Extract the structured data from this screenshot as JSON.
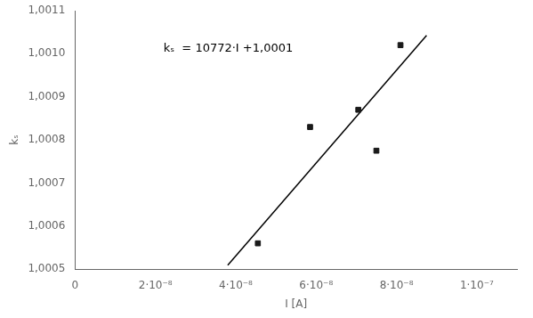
{
  "chart_data": {
    "type": "scatter",
    "xlabel": "I [A]",
    "ylabel": "kₛ",
    "annotation": "kₛ  = 10772·I +1,0001",
    "background_color": "#ffffff",
    "series": [
      {
        "type": "scatter",
        "marker": "square",
        "color": "#1a1a1a",
        "x": [
          4.55e-08,
          5.85e-08,
          7.05e-08,
          7.5e-08,
          8.1e-08
        ],
        "values": [
          1.00056,
          1.00083,
          1.00087,
          1.000775,
          1.00102
        ]
      },
      {
        "type": "line",
        "line_style": "solid",
        "color": "#000000",
        "x": [
          3.8e-08,
          8.75e-08
        ],
        "values": [
          1.000509336,
          1.00104255
        ]
      }
    ],
    "xlim": [
      0,
      1.1e-07
    ],
    "ylim": [
      1.0005,
      1.0011
    ],
    "xticks": [
      0,
      {
        "value": 2e-08,
        "label": "2·10⁻⁸"
      },
      {
        "value": 4e-08,
        "label": "4·10⁻⁸"
      },
      {
        "value": 6e-08,
        "label": "6·10⁻⁸"
      },
      {
        "value": 8e-08,
        "label": "8·10⁻⁸"
      },
      {
        "value": 1e-07,
        "label": "1·10⁻⁷"
      }
    ],
    "yticks": [
      {
        "value": 1.0005,
        "label": "1,0005"
      },
      {
        "value": 1.0006,
        "label": "1,0006"
      },
      {
        "value": 1.0007,
        "label": "1,0007"
      },
      {
        "value": 1.0008,
        "label": "1,0008"
      },
      {
        "value": 1.0009,
        "label": "1,0009"
      },
      {
        "value": 1.001,
        "label": "1,0010"
      },
      {
        "value": 1.0011,
        "label": "1,0011"
      }
    ],
    "grid": false
  }
}
